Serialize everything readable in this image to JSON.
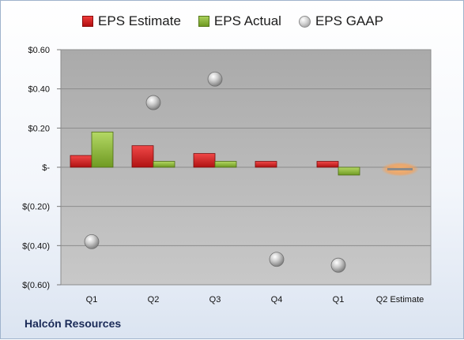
{
  "footer": {
    "company": "Halcón Resources"
  },
  "legend": [
    {
      "label": "EPS Estimate",
      "icon": "red-bar-swatch-icon"
    },
    {
      "label": "EPS Actual",
      "icon": "green-bar-swatch-icon"
    },
    {
      "label": "EPS GAAP",
      "icon": "gray-ball-icon"
    }
  ],
  "colors": {
    "estimate": "#c0191a",
    "actual": "#7fa82d",
    "gaap": "#a9a9a9",
    "forecast": "#f5a25a"
  },
  "chart_data": {
    "type": "bar",
    "categories": [
      "Q1",
      "Q2",
      "Q3",
      "Q4",
      "Q1",
      "Q2 Estimate"
    ],
    "series": [
      {
        "name": "EPS Estimate",
        "values": [
          0.06,
          0.11,
          0.07,
          0.03,
          0.03,
          -0.01
        ]
      },
      {
        "name": "EPS Actual",
        "values": [
          0.18,
          0.03,
          0.03,
          null,
          -0.04,
          null
        ]
      },
      {
        "name": "EPS GAAP",
        "values": [
          -0.38,
          0.33,
          0.45,
          -0.47,
          -0.5,
          null
        ]
      }
    ],
    "ylim": [
      -0.6,
      0.6
    ],
    "yticks": [
      0.6,
      0.4,
      0.2,
      0,
      -0.2,
      -0.4,
      -0.6
    ],
    "ytick_labels": [
      "$0.60",
      "$0.40",
      "$0.20",
      "$-",
      "$(0.20)",
      "$(0.40)",
      "$(0.60)"
    ],
    "grid": true,
    "legend_position": "top"
  }
}
